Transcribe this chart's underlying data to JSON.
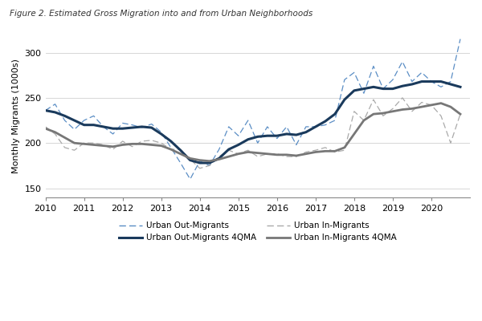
{
  "title": "Figure 2. Estimated Gross Migration into and from Urban Neighborhoods",
  "ylabel": "Monthly Migrants (1000s)",
  "ylim": [
    140,
    320
  ],
  "yticks": [
    150,
    200,
    250,
    300
  ],
  "xlim": [
    2010.0,
    2021.0
  ],
  "xticks": [
    2010,
    2011,
    2012,
    2013,
    2014,
    2015,
    2016,
    2017,
    2018,
    2019,
    2020
  ],
  "background_color": "#ffffff",
  "grid_color": "#d0d0d0",
  "out_migrants_color": "#5B8EC5",
  "in_migrants_color": "#aaaaaa",
  "out_4qma_color": "#1a3a5c",
  "in_4qma_color": "#777777",
  "x_years": [
    2010.0,
    2010.25,
    2010.5,
    2010.75,
    2011.0,
    2011.25,
    2011.5,
    2011.75,
    2012.0,
    2012.25,
    2012.5,
    2012.75,
    2013.0,
    2013.25,
    2013.5,
    2013.75,
    2014.0,
    2014.25,
    2014.5,
    2014.75,
    2015.0,
    2015.25,
    2015.5,
    2015.75,
    2016.0,
    2016.25,
    2016.5,
    2016.75,
    2017.0,
    2017.25,
    2017.5,
    2017.75,
    2018.0,
    2018.25,
    2018.5,
    2018.75,
    2019.0,
    2019.25,
    2019.5,
    2019.75,
    2020.0,
    2020.25,
    2020.5,
    2020.75
  ],
  "out_migrants": [
    236,
    243,
    225,
    215,
    225,
    230,
    218,
    210,
    222,
    220,
    217,
    221,
    212,
    195,
    178,
    160,
    180,
    175,
    193,
    218,
    208,
    225,
    200,
    218,
    205,
    218,
    198,
    218,
    218,
    220,
    225,
    270,
    278,
    255,
    285,
    260,
    270,
    290,
    268,
    278,
    268,
    262,
    268,
    315
  ],
  "in_migrants": [
    218,
    210,
    195,
    192,
    200,
    200,
    198,
    193,
    202,
    196,
    202,
    203,
    200,
    193,
    193,
    182,
    172,
    175,
    185,
    192,
    188,
    192,
    185,
    188,
    188,
    185,
    185,
    190,
    192,
    195,
    190,
    192,
    235,
    225,
    248,
    230,
    238,
    250,
    235,
    245,
    242,
    230,
    200,
    232
  ],
  "out_4qma": [
    236,
    234,
    230,
    225,
    220,
    220,
    218,
    216,
    216,
    217,
    218,
    217,
    210,
    202,
    192,
    181,
    178,
    178,
    183,
    193,
    198,
    204,
    207,
    208,
    208,
    210,
    209,
    212,
    218,
    224,
    232,
    248,
    258,
    260,
    262,
    260,
    260,
    263,
    265,
    268,
    268,
    268,
    265,
    262
  ],
  "in_4qma": [
    216,
    212,
    206,
    200,
    199,
    198,
    197,
    196,
    198,
    199,
    199,
    198,
    197,
    193,
    188,
    183,
    181,
    180,
    182,
    185,
    188,
    190,
    189,
    188,
    187,
    187,
    186,
    188,
    190,
    191,
    191,
    195,
    210,
    225,
    232,
    233,
    235,
    237,
    238,
    240,
    242,
    244,
    240,
    232
  ],
  "legend_labels": [
    "Urban Out-Migrants",
    "Urban Out-Migrants 4QMA",
    "Urban In-Migrants",
    "Urban In-Migrants 4QMA"
  ]
}
